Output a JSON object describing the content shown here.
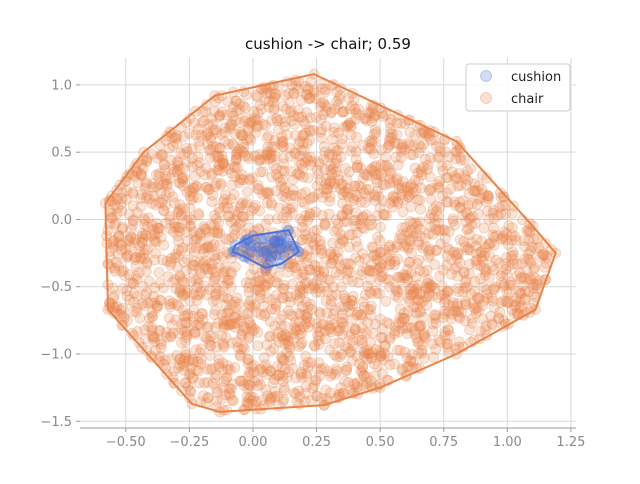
{
  "chart_data": {
    "type": "scatter",
    "title": "cushion -> chair; 0.59",
    "xlabel": "",
    "ylabel": "",
    "xlim": [
      -0.68,
      1.27
    ],
    "ylim": [
      -1.55,
      1.2
    ],
    "x_ticks": [
      -0.5,
      -0.25,
      0.0,
      0.25,
      0.5,
      0.75,
      1.0,
      1.25
    ],
    "y_ticks": [
      -1.5,
      -1.0,
      -0.5,
      0.0,
      0.5,
      1.0
    ],
    "x_tick_labels": [
      "−0.50",
      "−0.25",
      "0.00",
      "0.25",
      "0.50",
      "0.75",
      "1.00",
      "1.25"
    ],
    "y_tick_labels": [
      "−1.5",
      "−1.0",
      "−0.5",
      "0.0",
      "0.5",
      "1.0"
    ],
    "grid": true,
    "legend_position": "top-right",
    "series": [
      {
        "name": "cushion",
        "color": "#4a72d9",
        "point_count": 70,
        "hull": [
          [
            -0.08,
            -0.24
          ],
          [
            -0.07,
            -0.19
          ],
          [
            0.0,
            -0.12
          ],
          [
            0.14,
            -0.08
          ],
          [
            0.18,
            -0.24
          ],
          [
            0.11,
            -0.33
          ],
          [
            0.05,
            -0.36
          ],
          [
            -0.03,
            -0.28
          ]
        ]
      },
      {
        "name": "chair",
        "color": "#e8834a",
        "point_count": 2600,
        "hull": [
          [
            -0.58,
            0.12
          ],
          [
            -0.43,
            0.5
          ],
          [
            -0.15,
            0.92
          ],
          [
            0.24,
            1.08
          ],
          [
            0.8,
            0.58
          ],
          [
            1.1,
            -0.05
          ],
          [
            1.19,
            -0.25
          ],
          [
            1.11,
            -0.67
          ],
          [
            0.8,
            -1.0
          ],
          [
            0.5,
            -1.25
          ],
          [
            0.28,
            -1.38
          ],
          [
            -0.13,
            -1.43
          ],
          [
            -0.24,
            -1.37
          ],
          [
            -0.57,
            -0.67
          ]
        ]
      }
    ]
  }
}
